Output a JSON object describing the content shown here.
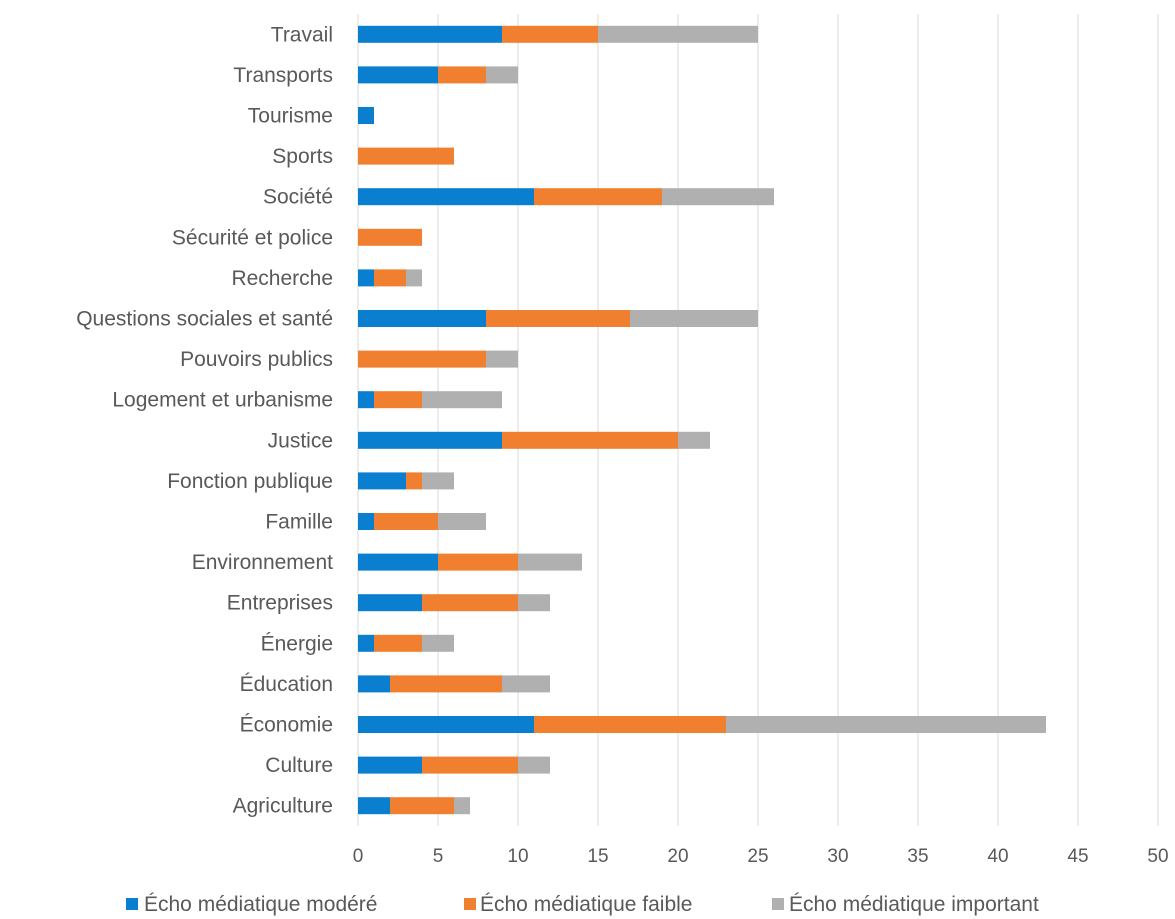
{
  "chart_data": {
    "type": "bar",
    "orientation": "horizontal",
    "stacked": true,
    "title": "",
    "xlabel": "",
    "ylabel": "",
    "xlim": [
      0,
      50
    ],
    "x_ticks": [
      "0",
      "5",
      "10",
      "15",
      "20",
      "25",
      "30",
      "35",
      "40",
      "45",
      "50"
    ],
    "grid": "vertical",
    "legend_position": "bottom",
    "categories": [
      "Agriculture",
      "Culture",
      "Économie",
      "Éducation",
      "Énergie",
      "Entreprises",
      "Environnement",
      "Famille",
      "Fonction publique",
      "Justice",
      "Logement et urbanisme",
      "Pouvoirs publics",
      "Questions sociales et santé",
      "Recherche",
      "Sécurité et police",
      "Société",
      "Sports",
      "Tourisme",
      "Transports",
      "Travail"
    ],
    "series": [
      {
        "name": "Écho médiatique modéré",
        "color": "#0a7fd0",
        "values": [
          2,
          4,
          11,
          2,
          1,
          4,
          5,
          1,
          3,
          9,
          1,
          0,
          8,
          1,
          0,
          11,
          0,
          1,
          5,
          9
        ]
      },
      {
        "name": "Écho médiatique faible",
        "color": "#f07f2f",
        "values": [
          4,
          6,
          12,
          7,
          3,
          6,
          5,
          4,
          1,
          11,
          3,
          8,
          9,
          2,
          4,
          8,
          6,
          0,
          3,
          6
        ]
      },
      {
        "name": "Écho médiatique important",
        "color": "#b0b0b0",
        "values": [
          1,
          2,
          20,
          3,
          2,
          2,
          4,
          3,
          2,
          2,
          5,
          2,
          8,
          1,
          0,
          7,
          0,
          0,
          2,
          10
        ]
      }
    ]
  }
}
